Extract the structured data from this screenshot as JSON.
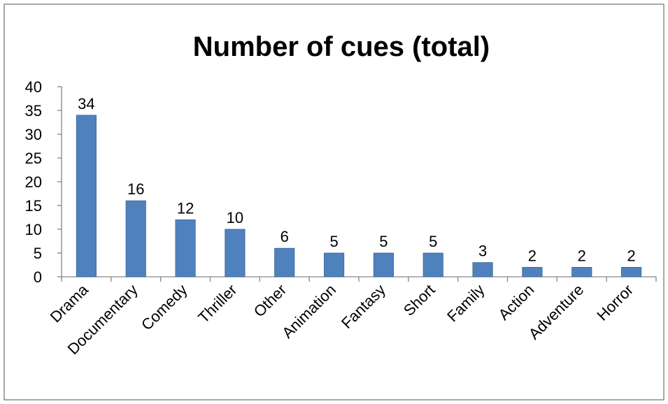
{
  "chart_data": {
    "type": "bar",
    "title": "Number of cues (total)",
    "categories": [
      "Drama",
      "Documentary",
      "Comedy",
      "Thriller",
      "Other",
      "Animation",
      "Fantasy",
      "Short",
      "Family",
      "Action",
      "Adventure",
      "Horror"
    ],
    "values": [
      34,
      16,
      12,
      10,
      6,
      5,
      5,
      5,
      3,
      2,
      2,
      2
    ],
    "xlabel": "",
    "ylabel": "",
    "ylim": [
      0,
      40
    ],
    "yticks": [
      0,
      5,
      10,
      15,
      20,
      25,
      30,
      35,
      40
    ],
    "data_labels": true,
    "grid": false,
    "legend": "none",
    "bar_color": "#4f81bd",
    "bar_edge_color": "#3c6796"
  }
}
